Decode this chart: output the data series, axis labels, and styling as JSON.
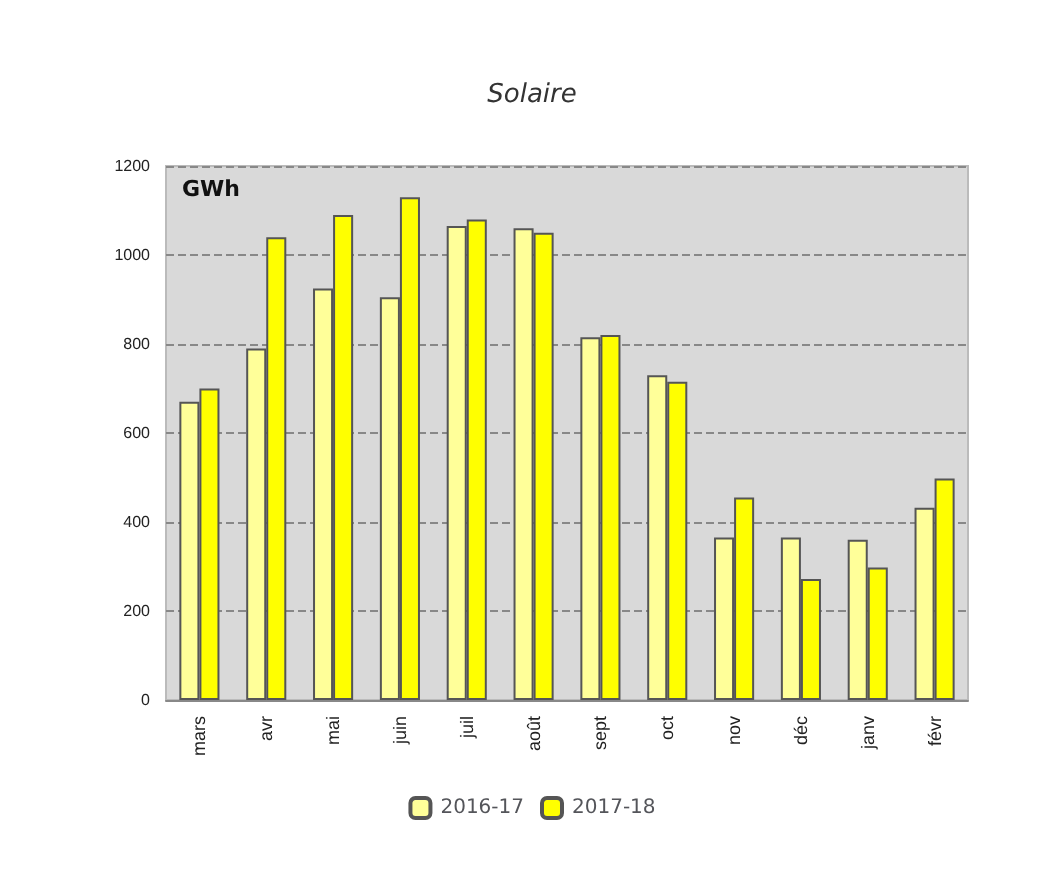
{
  "chart_data": {
    "type": "bar",
    "title": "Solaire",
    "annotations": [
      "GWh"
    ],
    "categories": [
      "mars",
      "avr",
      "mai",
      "juin",
      "juil",
      "août",
      "sept",
      "oct",
      "nov",
      "déc",
      "janv",
      "févr"
    ],
    "series": [
      {
        "name": "2016-17",
        "color": "#ffff99",
        "values": [
          670,
          790,
          925,
          905,
          1065,
          1060,
          815,
          730,
          365,
          365,
          360,
          432
        ]
      },
      {
        "name": "2017-18",
        "color": "#ffff00",
        "values": [
          700,
          1040,
          1090,
          1130,
          1080,
          1050,
          820,
          715,
          455,
          272,
          298,
          498
        ]
      }
    ],
    "ylim": [
      0,
      1200
    ],
    "yticks": [
      0,
      200,
      400,
      600,
      800,
      1000,
      1200
    ],
    "grid": "y",
    "legend": "bottom"
  }
}
